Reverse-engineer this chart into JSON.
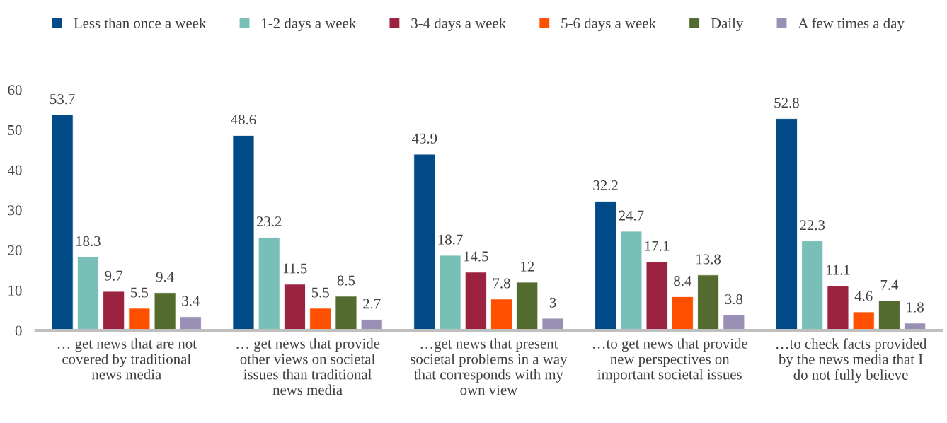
{
  "chart_data": {
    "type": "bar",
    "categories": [
      "… get news that are not\ncovered by traditional\nnews media",
      "… get news that provide\nother views on societal\nissues than traditional\nnews media",
      "…get news that present\nsocietal problems in a way\nthat corresponds with my\nown view",
      "…to get news that provide\nnew perspectives on\nimportant societal issues",
      "…to check facts provided\nby the news media that I\ndo not fully believe"
    ],
    "series": [
      {
        "name": "Less than once a week",
        "color": "#004a87",
        "values": [
          53.7,
          48.6,
          43.9,
          32.2,
          52.8
        ]
      },
      {
        "name": "1-2 days a week",
        "color": "#78bfb8",
        "values": [
          18.3,
          23.2,
          18.7,
          24.7,
          22.3
        ]
      },
      {
        "name": "3-4 days a week",
        "color": "#9b2340",
        "values": [
          9.7,
          11.5,
          14.5,
          17.1,
          11.1
        ]
      },
      {
        "name": "5-6 days a week",
        "color": "#ff5000",
        "values": [
          5.5,
          5.5,
          7.8,
          8.4,
          4.6
        ]
      },
      {
        "name": "Daily",
        "color": "#536b2e",
        "values": [
          9.4,
          8.5,
          12,
          13.8,
          7.4
        ]
      },
      {
        "name": "A few times a day",
        "color": "#9a8fb4",
        "values": [
          3.4,
          2.7,
          3,
          3.8,
          1.8
        ]
      }
    ],
    "ylim": [
      0,
      60
    ],
    "yticks": [
      0,
      10,
      20,
      30,
      40,
      50,
      60
    ],
    "data_labels": true,
    "legend": "top",
    "grid": false
  }
}
